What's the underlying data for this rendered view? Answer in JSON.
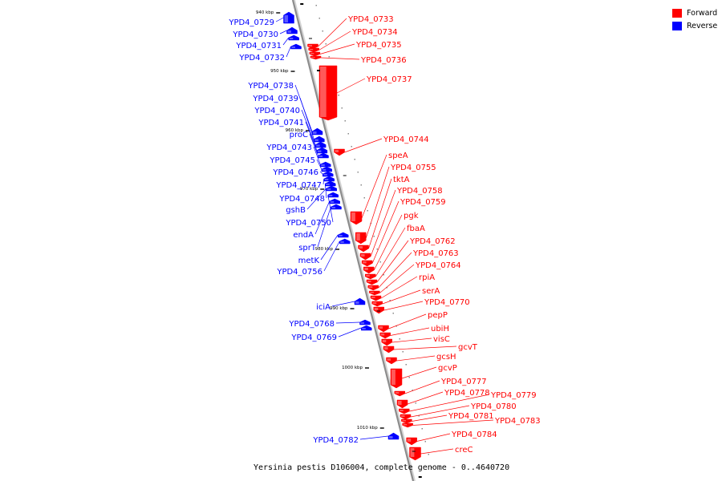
{
  "caption": "Yersinia pestis D106004, complete genome - 0..4640720",
  "colors": {
    "forward": "#ff0000",
    "reverse": "#0000ff",
    "backbone": "#999999"
  },
  "legend": [
    {
      "label": "Forward",
      "color": "#ff0000"
    },
    {
      "label": "Reverse",
      "color": "#0000ff"
    }
  ],
  "ticks": [
    "940 kbp",
    "950 kbp",
    "960 kbp",
    "970 kbp",
    "980 kbp",
    "990 kbp",
    "1000 kbp",
    "1010 kbp"
  ],
  "forward_genes": [
    "YPD4_0733",
    "YPD4_0734",
    "YPD4_0735",
    "YPD4_0736",
    "YPD4_0737",
    "YPD4_0744",
    "speA",
    "YPD4_0755",
    "tktA",
    "YPD4_0758",
    "YPD4_0759",
    "pgk",
    "fbaA",
    "YPD4_0762",
    "YPD4_0763",
    "YPD4_0764",
    "rpiA",
    "serA",
    "YPD4_0770",
    "pepP",
    "ubiH",
    "visC",
    "gcvT",
    "gcsH",
    "gcvP",
    "YPD4_0777",
    "YPD4_0778",
    "YPD4_0779",
    "YPD4_0780",
    "YPD4_0781",
    "YPD4_0783",
    "YPD4_0784",
    "creC"
  ],
  "reverse_genes": [
    "YPD4_0729",
    "YPD4_0730",
    "YPD4_0731",
    "YPD4_0732",
    "YPD4_0738",
    "YPD4_0739",
    "YPD4_0740",
    "YPD4_0741",
    "proC",
    "YPD4_0743",
    "YPD4_0745",
    "YPD4_0746",
    "YPD4_0747",
    "YPD4_0748",
    "gshB",
    "YPD4_0750",
    "endA",
    "sprT",
    "metK",
    "YPD4_0756",
    "iciA",
    "YPD4_0768",
    "YPD4_0769",
    "YPD4_0782"
  ]
}
